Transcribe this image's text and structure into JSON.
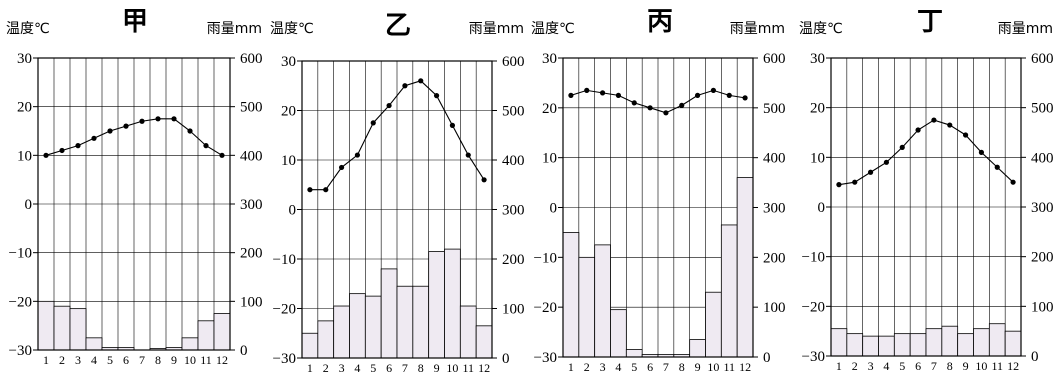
{
  "chart_data": [
    {
      "type": "bar+line",
      "title": "甲",
      "y_left_label": "温度℃",
      "y_right_label": "雨量mm",
      "x": [
        "1",
        "2",
        "3",
        "4",
        "5",
        "6",
        "7",
        "8",
        "9",
        "10",
        "11",
        "12"
      ],
      "temperature": [
        10,
        11,
        12,
        13.5,
        15,
        16,
        17,
        17.5,
        17.5,
        15,
        12,
        10
      ],
      "precipitation": [
        100,
        90,
        85,
        25,
        5,
        5,
        0,
        3,
        5,
        25,
        60,
        75
      ],
      "temp_ylim": [
        -30,
        30
      ],
      "temp_ticks": [
        30,
        20,
        10,
        0,
        -10,
        -20,
        -30
      ],
      "precip_ylim": [
        0,
        600
      ],
      "precip_ticks": [
        600,
        500,
        400,
        300,
        200,
        100,
        0
      ]
    },
    {
      "type": "bar+line",
      "title": "乙",
      "y_left_label": "温度℃",
      "y_right_label": "雨量mm",
      "x": [
        "1",
        "2",
        "3",
        "4",
        "5",
        "6",
        "7",
        "8",
        "9",
        "10",
        "11",
        "12"
      ],
      "temperature": [
        4,
        4,
        8.5,
        11,
        17.5,
        21,
        25,
        26,
        23,
        17,
        11,
        6
      ],
      "precipitation": [
        50,
        75,
        105,
        130,
        125,
        180,
        145,
        145,
        215,
        220,
        105,
        65
      ],
      "temp_ylim": [
        -30,
        30
      ],
      "temp_ticks": [
        30,
        20,
        10,
        0,
        -10,
        -20,
        -30
      ],
      "precip_ylim": [
        0,
        600
      ],
      "precip_ticks": [
        600,
        500,
        400,
        300,
        200,
        100,
        0
      ]
    },
    {
      "type": "bar+line",
      "title": "丙",
      "y_left_label": "温度℃",
      "y_right_label": "雨量mm",
      "x": [
        "1",
        "2",
        "3",
        "4",
        "5",
        "6",
        "7",
        "8",
        "9",
        "10",
        "11",
        "12"
      ],
      "temperature": [
        22.5,
        23.5,
        23,
        22.5,
        21,
        20,
        19,
        20.5,
        22.5,
        23.5,
        22.5,
        22
      ],
      "precipitation": [
        250,
        200,
        225,
        95,
        15,
        5,
        5,
        5,
        35,
        130,
        265,
        360
      ],
      "temp_ylim": [
        -30,
        30
      ],
      "temp_ticks": [
        30,
        20,
        10,
        0,
        -10,
        -20,
        -30
      ],
      "precip_ylim": [
        0,
        600
      ],
      "precip_ticks": [
        600,
        500,
        400,
        300,
        200,
        100,
        0
      ]
    },
    {
      "type": "bar+line",
      "title": "丁",
      "y_left_label": "温度℃",
      "y_right_label": "雨量mm",
      "x": [
        "1",
        "2",
        "3",
        "4",
        "5",
        "6",
        "7",
        "8",
        "9",
        "10",
        "11",
        "12"
      ],
      "temperature": [
        4.5,
        5,
        7,
        9,
        12,
        15.5,
        17.5,
        16.5,
        14.5,
        11,
        8,
        5
      ],
      "precipitation": [
        55,
        45,
        40,
        40,
        45,
        45,
        55,
        60,
        45,
        55,
        65,
        50
      ],
      "temp_ylim": [
        -30,
        30
      ],
      "temp_ticks": [
        30,
        20,
        10,
        0,
        -10,
        -20,
        -30
      ],
      "precip_ylim": [
        0,
        600
      ],
      "precip_ticks": [
        600,
        500,
        400,
        300,
        200,
        100,
        0
      ]
    }
  ]
}
